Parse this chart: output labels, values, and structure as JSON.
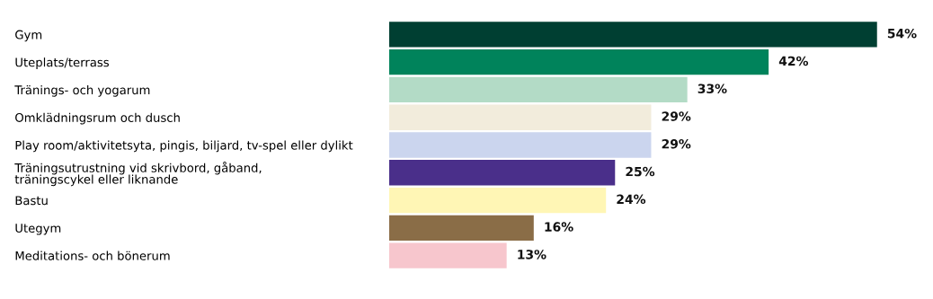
{
  "chart_data": {
    "type": "bar",
    "orientation": "horizontal",
    "categories": [
      "Gym",
      "Uteplats/terrass",
      "Tränings- och yogarum",
      "Omklädningsrum och dusch",
      "Play room/aktivitetsyta, pingis, biljard, tv-spel eller dylikt",
      "Träningsutrustning vid skrivbord, gåband,\nträningscykel eller liknande",
      "Bastu",
      "Utegym",
      "Meditations- och bönerum"
    ],
    "values": [
      54,
      42,
      33,
      29,
      29,
      25,
      24,
      16,
      13
    ],
    "colors": [
      "#003f32",
      "#00835b",
      "#b3dbc6",
      "#f2ecdc",
      "#cbd5ee",
      "#4a2f8a",
      "#fff6b5",
      "#8a6d47",
      "#f7c6cd"
    ],
    "value_labels": [
      "54%",
      "42%",
      "33%",
      "29%",
      "29%",
      "25%",
      "24%",
      "16%",
      "13%"
    ],
    "grid": false,
    "legend": false
  }
}
